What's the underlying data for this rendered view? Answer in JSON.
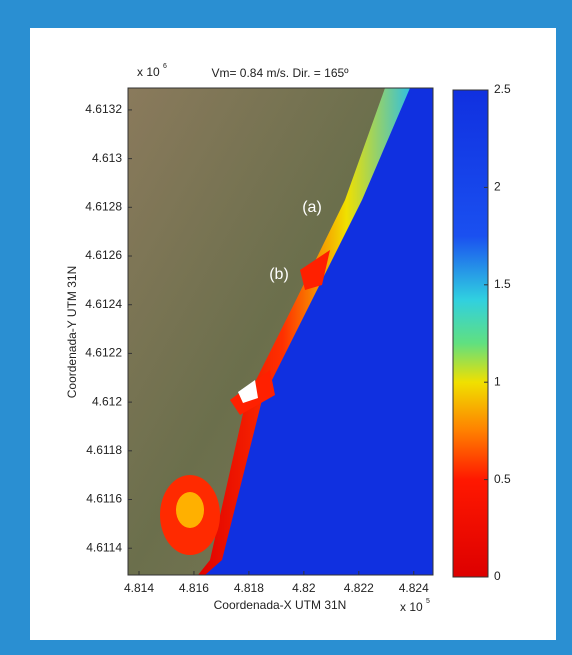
{
  "chart_data": {
    "type": "heatmap",
    "title": "Vm= 0.84 m/s. Dir. = 165º",
    "xlabel": "Coordenada-X UTM 31N",
    "ylabel": "Coordenada-Y UTM 31N",
    "x_multiplier": {
      "base": "x 10",
      "exponent": "5"
    },
    "y_multiplier": {
      "base": "x 10",
      "exponent": "6"
    },
    "xlim": [
      4.8136,
      4.8247
    ],
    "xticks": [
      4.814,
      4.816,
      4.818,
      4.82,
      4.822,
      4.824
    ],
    "ylim": [
      4.61129,
      4.61329
    ],
    "yticks": [
      4.6114,
      4.6116,
      4.6118,
      4.612,
      4.6122,
      4.6124,
      4.6126,
      4.6128,
      4.613,
      4.6132
    ],
    "annotations": [
      "(a)",
      "(b)"
    ],
    "colorbar": {
      "lim": [
        0,
        2.5
      ],
      "ticks": [
        0,
        0.5,
        1,
        1.5,
        2,
        2.5
      ],
      "colormap": "jet"
    }
  }
}
